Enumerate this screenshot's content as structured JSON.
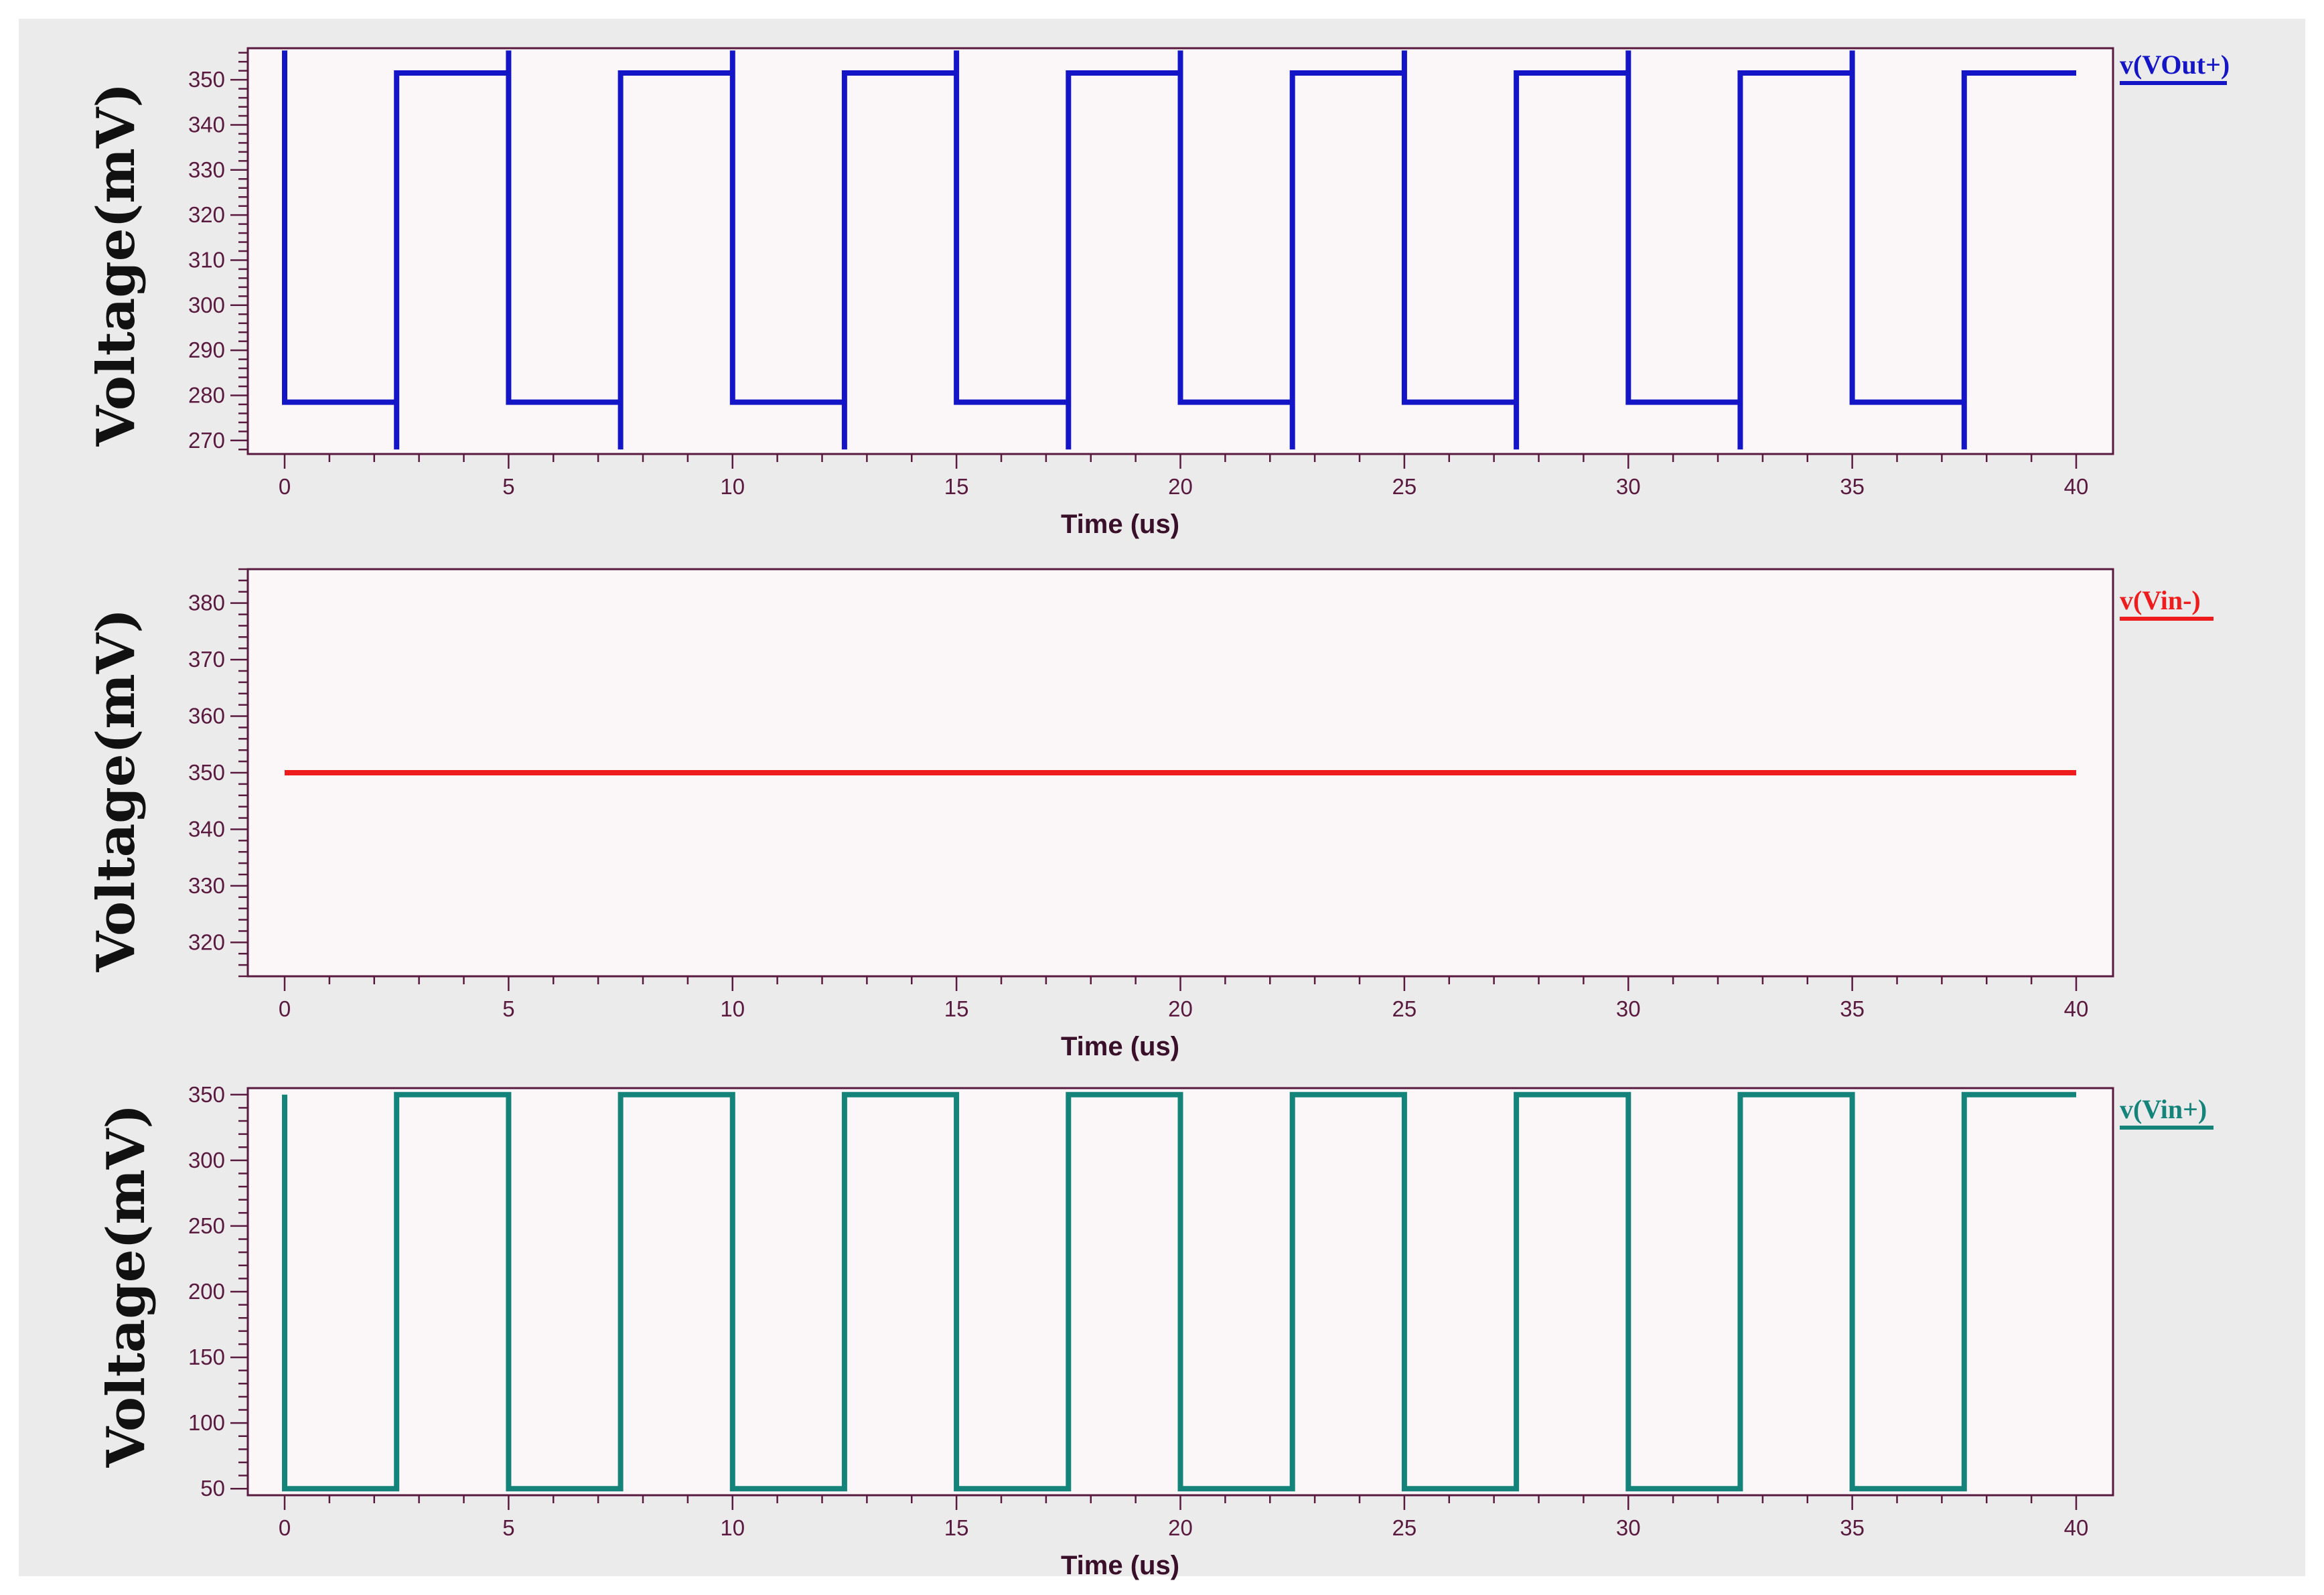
{
  "chart_data": [
    {
      "type": "line",
      "xlabel": "Time (us)",
      "ylabel": "Voltage(mV)",
      "xlim": [
        0,
        40
      ],
      "ylim": [
        267,
        357
      ],
      "xticks": [
        0,
        5,
        10,
        15,
        20,
        25,
        30,
        35,
        40
      ],
      "yticks": [
        270,
        280,
        290,
        300,
        310,
        320,
        330,
        340,
        350
      ],
      "grid": false,
      "legend_position": "top-right",
      "series": [
        {
          "name": "v(VOut+)",
          "color": "#1515c8",
          "period": 5,
          "high": 351.5,
          "low": 278.5,
          "overshoot_high": 356.5,
          "overshoot_low": 268,
          "first_high_to_low": 0,
          "first_low_to_high": 2.5,
          "end": 40
        }
      ]
    },
    {
      "type": "line",
      "xlabel": "Time (us)",
      "ylabel": "Voltage(mV)",
      "xlim": [
        0,
        40
      ],
      "ylim": [
        314,
        386
      ],
      "xticks": [
        0,
        5,
        10,
        15,
        20,
        25,
        30,
        35,
        40
      ],
      "yticks": [
        320,
        330,
        340,
        350,
        360,
        370,
        380
      ],
      "grid": false,
      "legend_position": "top-right",
      "series": [
        {
          "name": "v(Vin-)",
          "color": "#ee1c1c",
          "x": [
            0,
            40
          ],
          "y": [
            350,
            350
          ]
        }
      ]
    },
    {
      "type": "line",
      "xlabel": "Time (us)",
      "ylabel": "Voltage(mV)",
      "xlim": [
        0,
        40
      ],
      "ylim": [
        45,
        355
      ],
      "xticks": [
        0,
        5,
        10,
        15,
        20,
        25,
        30,
        35,
        40
      ],
      "yticks": [
        50,
        100,
        150,
        200,
        250,
        300,
        350
      ],
      "grid": false,
      "legend_position": "top-right",
      "series": [
        {
          "name": "v(Vin+)",
          "color": "#14837a",
          "period": 5,
          "high": 350,
          "low": 50,
          "first_high_to_low": 0,
          "first_low_to_high": 2.5,
          "end": 40
        }
      ]
    }
  ]
}
